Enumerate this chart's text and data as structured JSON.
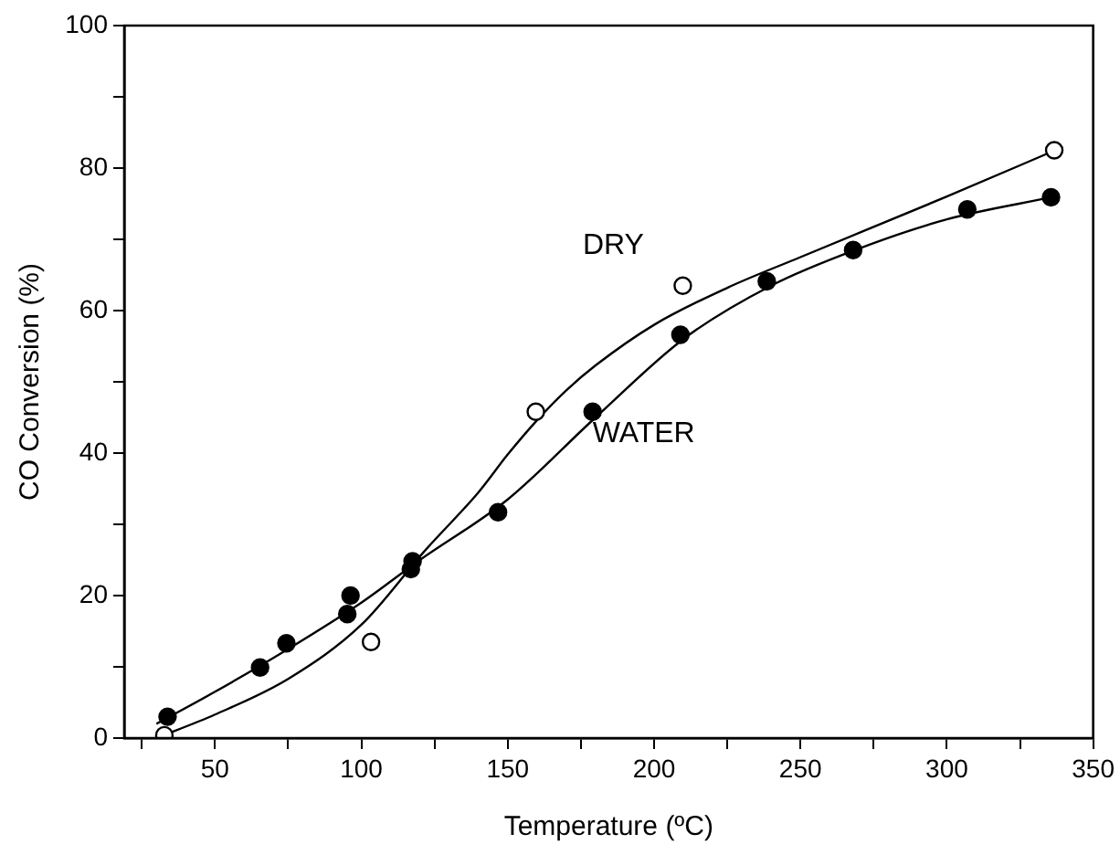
{
  "chart_data": {
    "type": "scatter",
    "xlabel": "Temperature (ºC)",
    "ylabel": "CO Conversion (%)",
    "xlim": [
      19,
      350
    ],
    "ylim": [
      0,
      100
    ],
    "xticks": [
      {
        "value": 25,
        "label": null
      },
      50,
      {
        "value": 75,
        "label": null
      },
      100,
      {
        "value": 125,
        "label": null
      },
      150,
      {
        "value": 175,
        "label": null
      },
      200,
      {
        "value": 225,
        "label": null
      },
      250,
      {
        "value": 275,
        "label": null
      },
      300,
      {
        "value": 325,
        "label": null
      },
      350
    ],
    "yticks": [
      0,
      {
        "value": 10,
        "label": null
      },
      20,
      {
        "value": 30,
        "label": null
      },
      40,
      {
        "value": 50,
        "label": null
      },
      60,
      {
        "value": 70,
        "label": null
      },
      80,
      {
        "value": 90,
        "label": null
      },
      100
    ],
    "grid": false,
    "legend": false,
    "marker": "circle",
    "series": [
      {
        "name": "DRY",
        "color": "#000000",
        "x": [
          32.7,
          103.3,
          159.6,
          209.8,
          336.7
        ],
        "values": [
          0.4,
          13.5,
          45.8,
          63.5,
          82.5
        ]
      },
      {
        "name": "WATER",
        "color": "#000000",
        "x": [
          33.8,
          65.4,
          74.4,
          95.2,
          96.3,
          116.9,
          117.5,
          146.7,
          179,
          209,
          238.5,
          268,
          307,
          335.6
        ],
        "values": [
          3,
          9.9,
          13.3,
          17.4,
          20,
          23.7,
          24.8,
          31.7,
          45.8,
          56.6,
          64.1,
          68.5,
          74.2,
          75.9
        ]
      },
      {
        "type": "line",
        "color": "#000000",
        "marker": "none",
        "line_style": "solid",
        "x": [
          30,
          50,
          75,
          100,
          121.7,
          140,
          150,
          160,
          170,
          180,
          200,
          225,
          250,
          300,
          337
        ],
        "values": [
          0,
          3.3,
          8.3,
          15.9,
          26.3,
          34.5,
          39.8,
          44.6,
          48.8,
          52.3,
          58,
          63.2,
          67.5,
          76,
          82.5
        ]
      },
      {
        "type": "line",
        "color": "#000000",
        "marker": "none",
        "line_style": "solid",
        "x": [
          30,
          50,
          75,
          100,
          120,
          150,
          180,
          210,
          240,
          270,
          300,
          337
        ],
        "values": [
          2,
          6.5,
          12.5,
          19,
          25,
          33.5,
          45,
          56,
          63.5,
          68.7,
          72.8,
          76
        ]
      }
    ]
  }
}
